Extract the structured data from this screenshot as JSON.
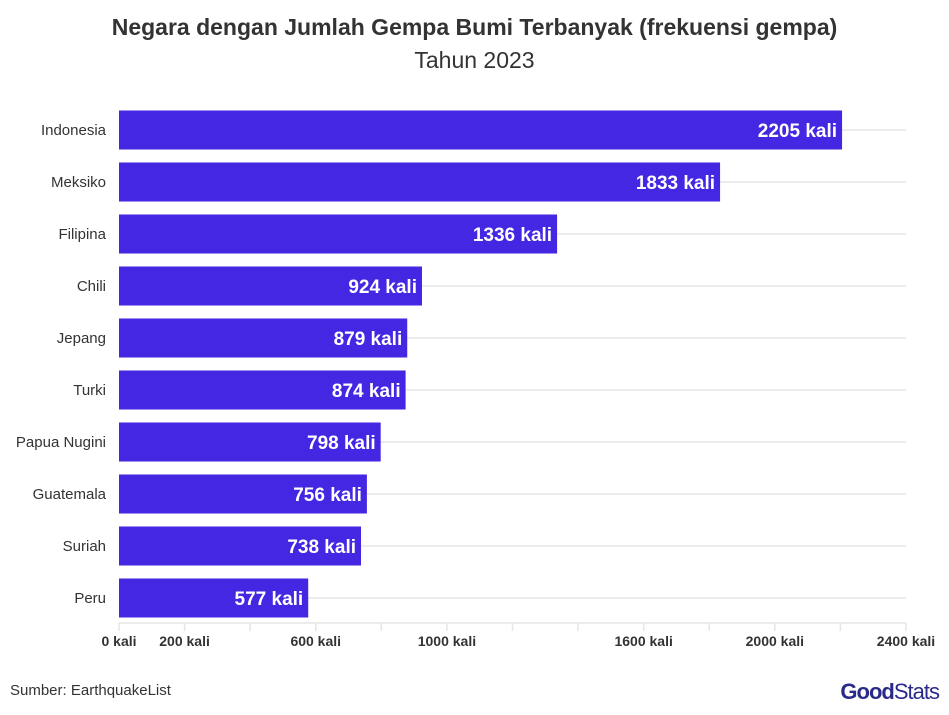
{
  "chart_data": {
    "type": "bar",
    "orientation": "horizontal",
    "title": "Negara dengan Jumlah Gempa Bumi Terbanyak (frekuensi gempa)",
    "subtitle": "Tahun 2023",
    "categories": [
      "Indonesia",
      "Meksiko",
      "Filipina",
      "Chili",
      "Jepang",
      "Turki",
      "Papua Nugini",
      "Guatemala",
      "Suriah",
      "Peru"
    ],
    "values": [
      2205,
      1833,
      1336,
      924,
      879,
      874,
      798,
      756,
      738,
      577
    ],
    "data_labels": [
      "2205 kali",
      "1833 kali",
      "1336 kali",
      "924 kali",
      "879 kali",
      "874 kali",
      "798 kali",
      "756 kali",
      "738 kali",
      "577 kali"
    ],
    "xlim": [
      0,
      2400
    ],
    "tick_values": [
      0,
      200,
      400,
      600,
      800,
      1000,
      1200,
      1400,
      1600,
      1800,
      2000,
      2200,
      2400
    ],
    "tick_labels": [
      {
        "value": 0,
        "label": "0 kali"
      },
      {
        "value": 200,
        "label": "200 kali"
      },
      {
        "value": 600,
        "label": "600 kali"
      },
      {
        "value": 1000,
        "label": "1000 kali"
      },
      {
        "value": 1600,
        "label": "1600 kali"
      },
      {
        "value": 2000,
        "label": "2000 kali"
      },
      {
        "value": 2400,
        "label": "2400 kali"
      }
    ],
    "grid": true,
    "bar_color": "#4427E3"
  },
  "footer": {
    "source": "Sumber: EarthquakeList",
    "logo_bold": "Good",
    "logo_light": "Stats"
  }
}
